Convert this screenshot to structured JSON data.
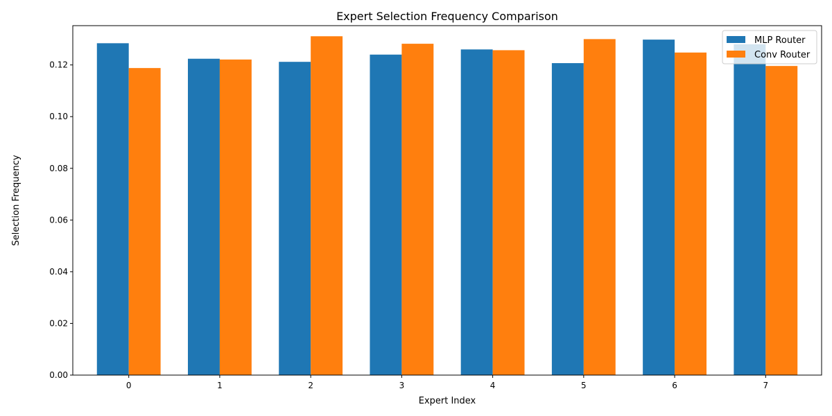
{
  "chart_data": {
    "type": "bar",
    "title": "Expert Selection Frequency Comparison",
    "xlabel": "Expert Index",
    "ylabel": "Selection Frequency",
    "categories": [
      "0",
      "1",
      "2",
      "3",
      "4",
      "5",
      "6",
      "7"
    ],
    "series": [
      {
        "name": "MLP Router",
        "color": "#1f77b4",
        "values": [
          0.1284,
          0.1224,
          0.1212,
          0.124,
          0.126,
          0.1207,
          0.1298,
          0.128
        ]
      },
      {
        "name": "Conv Router",
        "color": "#ff7f0e",
        "values": [
          0.1188,
          0.1221,
          0.1311,
          0.1282,
          0.1257,
          0.13,
          0.1248,
          0.1196
        ]
      }
    ],
    "ylim": [
      0,
      0.1352
    ],
    "yticks": [
      0.0,
      0.02,
      0.04,
      0.06,
      0.08,
      0.1,
      0.12
    ],
    "ytick_labels": [
      "0.00",
      "0.02",
      "0.04",
      "0.06",
      "0.08",
      "0.10",
      "0.12"
    ],
    "grid": false,
    "legend_position": "top-right"
  }
}
